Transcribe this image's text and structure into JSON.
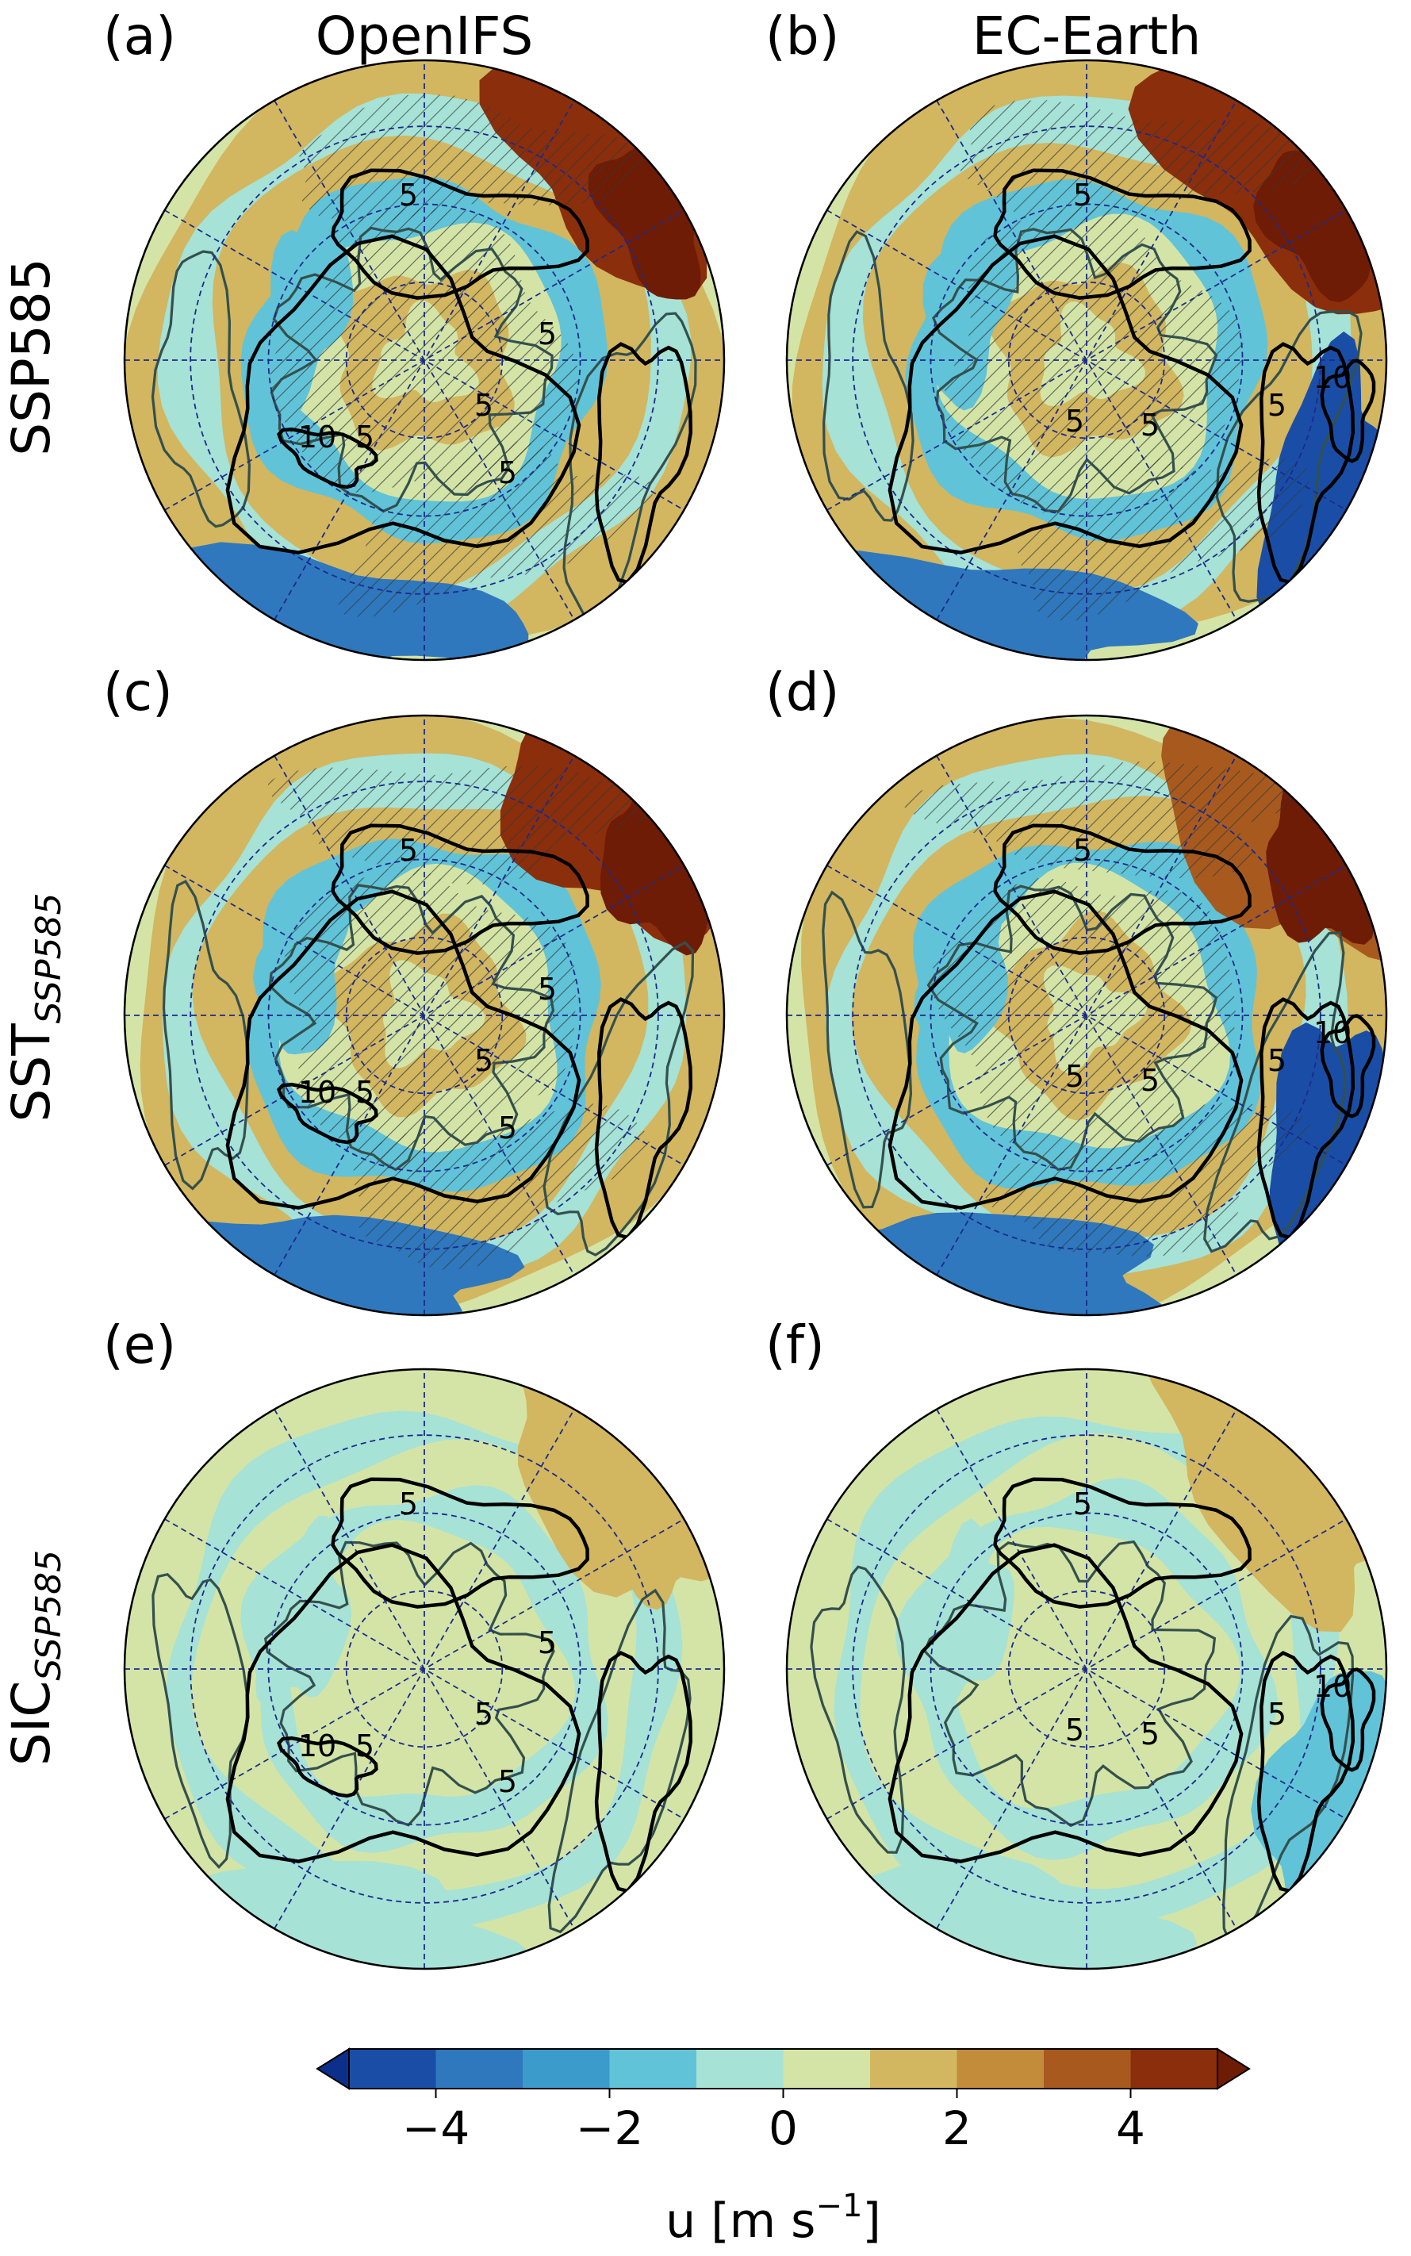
{
  "figure": {
    "columns": [
      "OpenIFS",
      "EC-Earth"
    ],
    "rows": [
      {
        "main": "SSP585",
        "sub": ""
      },
      {
        "main": "SST",
        "sub": "SSP585"
      },
      {
        "main": "SIC",
        "sub": "SSP585"
      }
    ]
  },
  "panels": [
    {
      "label": "(a)",
      "model": "OpenIFS",
      "row": "SSP585",
      "hatched": true,
      "intensity": 1.0
    },
    {
      "label": "(b)",
      "model": "EC-Earth",
      "row": "SSP585",
      "hatched": true,
      "intensity": 1.0
    },
    {
      "label": "(c)",
      "model": "OpenIFS",
      "row": "SST_SSP585",
      "hatched": true,
      "intensity": 1.0
    },
    {
      "label": "(d)",
      "model": "EC-Earth",
      "row": "SST_SSP585",
      "hatched": true,
      "intensity": 0.95
    },
    {
      "label": "(e)",
      "model": "OpenIFS",
      "row": "SIC_SSP585",
      "hatched": false,
      "intensity": 0.3
    },
    {
      "label": "(f)",
      "model": "EC-Earth",
      "row": "SIC_SSP585",
      "hatched": false,
      "intensity": 0.3
    }
  ],
  "contour_labels": {
    "OpenIFS": [
      "5",
      "10",
      "5",
      "5",
      "5",
      "5"
    ],
    "EC-Earth": [
      "5",
      "5",
      "5",
      "10",
      "5"
    ]
  },
  "colorbar": {
    "levels": [
      -5,
      -4,
      -3,
      -2,
      -1,
      0,
      1,
      2,
      3,
      4,
      5
    ],
    "colors": [
      "#1a4ea6",
      "#2f78bd",
      "#3b9bcb",
      "#61c3d8",
      "#a6e2d6",
      "#d4e4a6",
      "#d2b660",
      "#c28c3a",
      "#a85a1e",
      "#8b2e0c"
    ],
    "under_color": "#0d2f8c",
    "over_color": "#6e1c06",
    "ticks": [
      "−4",
      "−2",
      "0",
      "2",
      "4"
    ],
    "label_main": "u [m s",
    "label_exp": "−1",
    "label_end": "]"
  }
}
